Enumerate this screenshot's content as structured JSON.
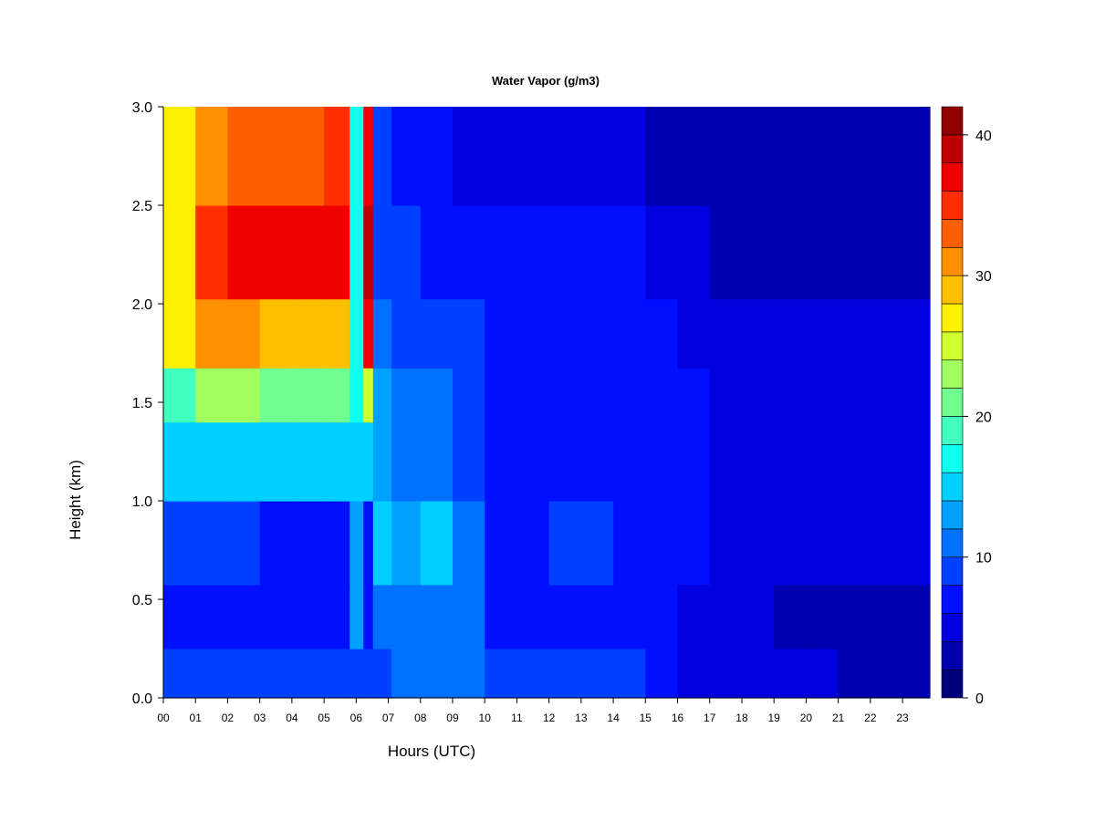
{
  "chart_data": {
    "type": "heatmap",
    "title": "Water Vapor (g/m3)",
    "xlabel": "Hours (UTC)",
    "ylabel": "Height (km)",
    "xlim": [
      0,
      23.85
    ],
    "ylim": [
      0.0,
      3.0
    ],
    "x_ticks": [
      "00",
      "01",
      "02",
      "03",
      "04",
      "05",
      "06",
      "07",
      "08",
      "09",
      "10",
      "11",
      "12",
      "13",
      "14",
      "15",
      "16",
      "17",
      "18",
      "19",
      "20",
      "21",
      "22",
      "23"
    ],
    "y_ticks": [
      "0.0",
      "0.5",
      "1.0",
      "1.5",
      "2.0",
      "2.5",
      "3.0"
    ],
    "colorbar": {
      "range": [
        0,
        42
      ],
      "step": 2,
      "ticks": [
        "0",
        "10",
        "20",
        "30",
        "40"
      ],
      "colors": [
        "#00007F",
        "#0000AF",
        "#0000DF",
        "#0010FF",
        "#0040FF",
        "#0070FF",
        "#00A0FF",
        "#00D0FF",
        "#10FFEF",
        "#40FFBF",
        "#70FF8F",
        "#A0FF5F",
        "#D0FF2F",
        "#FFEF00",
        "#FFBF00",
        "#FF8F00",
        "#FF5F00",
        "#FF2F00",
        "#EF0000",
        "#BF0000",
        "#8F0000"
      ]
    },
    "grid": false,
    "heights_km": [
      0.1,
      0.4,
      0.75,
      1.25,
      1.55,
      1.8,
      2.25,
      2.75
    ],
    "hours": [
      0.5,
      1.5,
      2.5,
      3.5,
      4.5,
      5.5,
      6.1,
      6.35,
      6.7,
      7.5,
      8.5,
      9.5,
      10.5,
      11.5,
      12.5,
      13.5,
      14.5,
      15.5,
      16.5,
      17.5,
      18.5,
      19.5,
      20.5,
      21.5,
      22.5,
      23.5
    ],
    "values": [
      [
        9,
        9,
        9,
        9,
        9,
        9,
        9,
        9,
        9,
        11,
        11,
        11,
        9,
        8,
        8,
        8,
        8,
        7,
        4,
        4,
        4,
        4,
        4,
        2,
        2,
        2
      ],
      [
        7,
        7,
        6,
        6,
        6,
        6,
        12,
        6,
        10,
        11,
        11,
        10,
        7,
        7,
        7,
        7,
        7,
        6,
        5,
        4,
        4,
        3,
        3,
        3,
        3,
        3
      ],
      [
        8,
        9,
        8,
        7,
        7,
        7,
        13,
        7,
        15,
        13,
        14,
        11,
        7,
        7,
        8,
        8,
        7,
        7,
        7,
        5,
        5,
        4,
        4,
        4,
        4,
        4
      ],
      [
        14,
        15,
        15,
        14,
        14,
        14,
        15,
        15,
        13,
        11,
        11,
        9,
        7,
        7,
        7,
        7,
        7,
        6,
        6,
        5,
        5,
        4,
        4,
        4,
        4,
        4
      ],
      [
        19,
        22,
        22,
        20,
        20,
        20,
        16,
        25,
        12,
        10,
        10,
        9,
        7,
        7,
        7,
        7,
        6,
        6,
        6,
        5,
        5,
        4,
        4,
        4,
        4,
        4
      ],
      [
        27,
        30,
        30,
        29,
        29,
        29,
        17,
        36,
        11,
        9,
        8,
        8,
        7,
        7,
        7,
        7,
        6,
        6,
        5,
        4,
        4,
        4,
        4,
        4,
        4,
        4
      ],
      [
        27,
        34,
        36,
        37,
        37,
        37,
        17,
        38,
        9,
        8,
        7,
        7,
        6,
        6,
        6,
        6,
        6,
        5,
        4,
        3,
        3,
        3,
        3,
        3,
        3,
        3
      ],
      [
        27,
        31,
        33,
        33,
        33,
        34,
        17,
        36,
        8,
        7,
        6,
        5,
        4,
        4,
        4,
        4,
        4,
        3,
        2,
        2,
        2,
        2,
        2,
        2,
        2,
        2
      ]
    ]
  }
}
